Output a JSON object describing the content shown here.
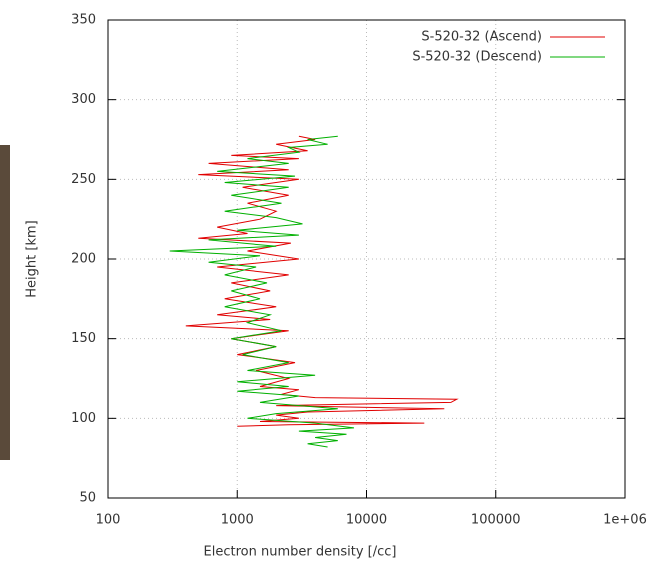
{
  "chart_data": {
    "type": "line",
    "x_label": "Electron number density [/cc]",
    "y_label": "Height [km]",
    "xscale": "log",
    "xlim": [
      100,
      1000000
    ],
    "ylim": [
      50,
      350
    ],
    "xticks": [
      100,
      1000,
      10000,
      100000,
      {
        "value": 1000000,
        "label": "1e+06"
      }
    ],
    "yticks": [
      50,
      100,
      150,
      200,
      250,
      300,
      350
    ],
    "grid": true,
    "legend": "upper right",
    "series": [
      {
        "name": "S-520-32 (Ascend)",
        "color": "#e00000",
        "x": [
          1000,
          2500,
          28000,
          1500,
          3000,
          2000,
          3500,
          40000,
          2000,
          45000,
          50000,
          4000,
          2200,
          3000,
          1500,
          2500,
          1400,
          2800,
          1000,
          2000,
          900,
          2500,
          400,
          1800,
          700,
          2000,
          800,
          1800,
          900,
          2500,
          700,
          3000,
          1200,
          2600,
          500,
          1200,
          700,
          1500,
          2000,
          1200,
          2500,
          1100,
          3000,
          500,
          2500,
          600,
          3000,
          900,
          3500,
          2000,
          4000,
          3000
        ],
        "values": [
          95,
          96,
          97,
          98,
          100,
          102,
          104,
          106,
          108,
          110,
          112,
          113,
          115,
          118,
          120,
          125,
          130,
          135,
          140,
          145,
          150,
          155,
          158,
          162,
          165,
          170,
          175,
          180,
          185,
          190,
          195,
          200,
          205,
          210,
          213,
          216,
          220,
          225,
          230,
          235,
          240,
          245,
          250,
          253,
          256,
          260,
          263,
          265,
          268,
          272,
          275,
          277
        ]
      },
      {
        "name": "S-520-32 (Descend)",
        "color": "#00b000",
        "x": [
          6000,
          3500,
          5000,
          2500,
          3000,
          1200,
          2500,
          700,
          2800,
          800,
          2500,
          900,
          2200,
          800,
          2000,
          3200,
          1000,
          3000,
          600,
          2000,
          300,
          1500,
          600,
          1400,
          800,
          1700,
          900,
          1500,
          800,
          1800,
          1200,
          2200,
          900,
          2000,
          1100,
          2500,
          1200,
          4000,
          1000,
          2500,
          1000,
          3000,
          1500,
          6000,
          2000,
          1200,
          4000,
          8000,
          3000,
          7000,
          4000,
          6000,
          3500,
          5000
        ],
        "values": [
          277,
          275,
          272,
          270,
          267,
          263,
          260,
          255,
          252,
          248,
          245,
          240,
          235,
          230,
          226,
          222,
          218,
          215,
          212,
          208,
          205,
          202,
          198,
          195,
          190,
          185,
          180,
          175,
          170,
          165,
          160,
          155,
          150,
          145,
          140,
          135,
          130,
          127,
          123,
          120,
          117,
          114,
          110,
          106,
          103,
          100,
          97,
          94,
          92,
          90,
          88,
          86,
          84,
          82
        ]
      }
    ]
  }
}
